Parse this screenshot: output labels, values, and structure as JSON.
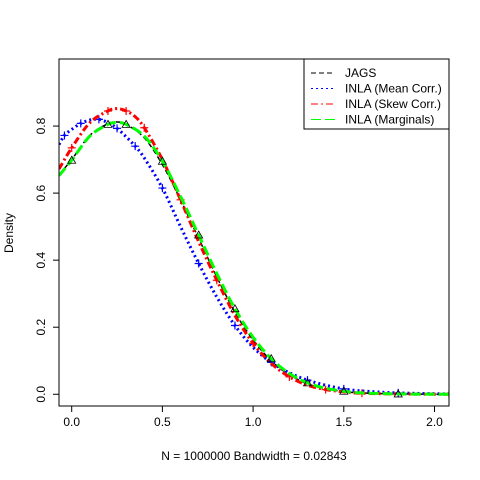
{
  "chart_data": {
    "type": "line",
    "xlabel": "N = 1000000   Bandwidth = 0.02843",
    "ylabel": "Density",
    "xlim": [
      -0.07,
      2.08
    ],
    "ylim": [
      -0.035,
      1.0
    ],
    "xticks": [
      0.0,
      0.5,
      1.0,
      1.5,
      2.0
    ],
    "xtick_labels": [
      "0.0",
      "0.5",
      "1.0",
      "1.5",
      "2.0"
    ],
    "yticks": [
      0.0,
      0.2,
      0.4,
      0.6,
      0.8
    ],
    "ytick_labels": [
      "0.0",
      "0.2",
      "0.4",
      "0.6",
      "0.8"
    ],
    "grid": false,
    "legend_position": "top-right",
    "series": [
      {
        "name": "JAGS",
        "color": "#000000",
        "dash": "dashed",
        "marker": "none",
        "x": [
          -0.07,
          0.0,
          0.1,
          0.2,
          0.25,
          0.3,
          0.4,
          0.5,
          0.6,
          0.7,
          0.8,
          0.9,
          1.0,
          1.1,
          1.2,
          1.3,
          1.4,
          1.5,
          1.6,
          1.8,
          2.08
        ],
        "y": [
          0.655,
          0.7,
          0.772,
          0.807,
          0.812,
          0.805,
          0.765,
          0.685,
          0.58,
          0.465,
          0.35,
          0.245,
          0.162,
          0.1,
          0.058,
          0.031,
          0.016,
          0.008,
          0.004,
          0.001,
          0.0
        ]
      },
      {
        "name": "INLA (Mean Corr.)",
        "color": "#0000ff",
        "dash": "dotted",
        "marker": "plus",
        "x": [
          -0.07,
          -0.04,
          0.0,
          0.05,
          0.1,
          0.15,
          0.2,
          0.25,
          0.3,
          0.35,
          0.4,
          0.5,
          0.6,
          0.7,
          0.8,
          0.9,
          1.0,
          1.1,
          1.2,
          1.3,
          1.4,
          1.5,
          1.6,
          1.8,
          2.08
        ],
        "y": [
          0.745,
          0.772,
          0.79,
          0.808,
          0.818,
          0.82,
          0.81,
          0.793,
          0.768,
          0.74,
          0.705,
          0.615,
          0.5,
          0.39,
          0.29,
          0.205,
          0.14,
          0.095,
          0.064,
          0.042,
          0.027,
          0.016,
          0.01,
          0.004,
          0.001
        ]
      },
      {
        "name": "INLA (Skew Corr.)",
        "color": "#ff0000",
        "dash": "dashdot",
        "marker": "plus",
        "x": [
          -0.07,
          0.0,
          0.1,
          0.2,
          0.25,
          0.3,
          0.35,
          0.4,
          0.5,
          0.6,
          0.7,
          0.8,
          0.9,
          1.0,
          1.1,
          1.2,
          1.3,
          1.4,
          1.5,
          1.6,
          1.8,
          2.08
        ],
        "y": [
          0.672,
          0.735,
          0.81,
          0.845,
          0.852,
          0.845,
          0.828,
          0.795,
          0.7,
          0.58,
          0.455,
          0.34,
          0.235,
          0.152,
          0.092,
          0.052,
          0.027,
          0.014,
          0.007,
          0.003,
          0.001,
          0.0
        ]
      },
      {
        "name": "INLA (Marginals)",
        "color": "#00ff00",
        "dash": "longdash",
        "marker": "triangle",
        "x": [
          -0.07,
          0.0,
          0.1,
          0.2,
          0.25,
          0.3,
          0.4,
          0.5,
          0.6,
          0.7,
          0.8,
          0.9,
          1.0,
          1.1,
          1.2,
          1.3,
          1.4,
          1.5,
          1.6,
          1.8,
          2.08
        ],
        "y": [
          0.652,
          0.698,
          0.77,
          0.805,
          0.81,
          0.805,
          0.77,
          0.695,
          0.59,
          0.475,
          0.36,
          0.255,
          0.17,
          0.106,
          0.062,
          0.034,
          0.018,
          0.009,
          0.004,
          0.001,
          0.0
        ]
      }
    ]
  }
}
